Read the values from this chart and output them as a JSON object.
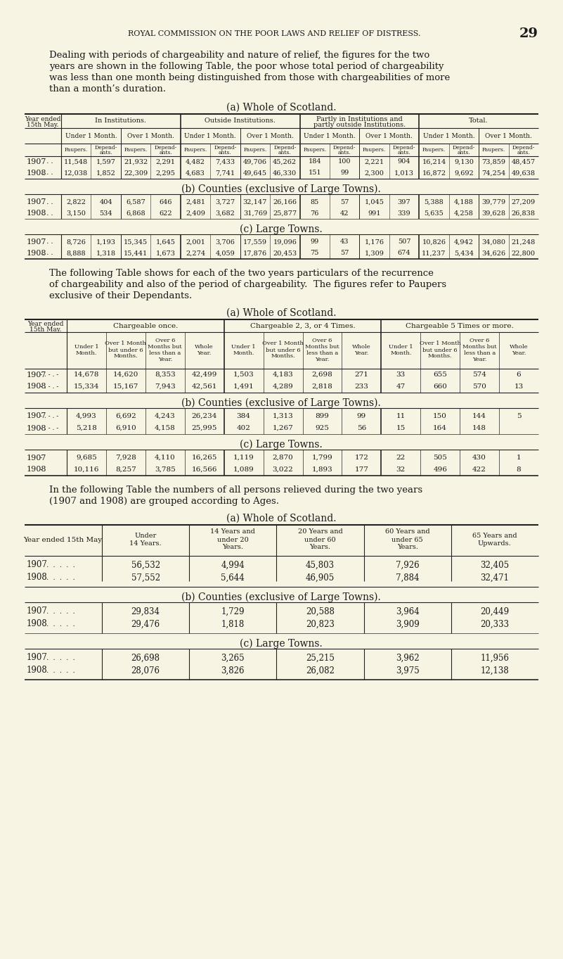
{
  "bg_color": "#f7f4e4",
  "text_color": "#1a1a1a",
  "page_header": "ROYAL COMMISSION ON THE POOR LAWS AND RELIEF OF DISTRESS.",
  "page_number": "29",
  "intro_text": "Dealing with periods of chargeability and nature of relief, the figures for the two\nyears are shown in the following Table, the poor whose total period of chargeability\nwas less than one month being distinguished from those with chargeabilities of more\nthan a month’s duration.",
  "table1_title": "(a) Whole of Scotland.",
  "table1_col_groups": [
    "In Institutions.",
    "Outside Institutions.",
    "Partly in Institutions and\npartly outside Institutions.",
    "Total."
  ],
  "table1_sub_cols": [
    "Under 1 Month.",
    "Over 1 Month.",
    "Under 1 Month.",
    "Over 1 Month.",
    "Under 1 Month.",
    "Over 1 Month.",
    "Under 1 Month.",
    "Over 1 Month."
  ],
  "table1_leaf_cols": [
    "Paupers.",
    "Depend-\nants.",
    "Paupers.",
    "Depend-\nants.",
    "Paupers.",
    "Depend-\nants.",
    "Paupers.",
    "Depend-\nants.",
    "Paupers.",
    "Depend-\nants.",
    "Paupers.",
    "Depend-\nants.",
    "Paupers.",
    "Depend-\nants.",
    "Paupers.",
    "Depend-\nants."
  ],
  "table1_data": [
    [
      "1907",
      "11,548",
      "1,597",
      "21,932",
      "2,291",
      "4,482",
      "7,433",
      "49,706",
      "45,262",
      "184",
      "100",
      "2,221",
      "904",
      "16,214",
      "9,130",
      "73,859",
      "48,457"
    ],
    [
      "1908",
      "12,038",
      "1,852",
      "22,309",
      "2,295",
      "4,683",
      "7,741",
      "49,645",
      "46,330",
      "151",
      "99",
      "2,300",
      "1,013",
      "16,872",
      "9,692",
      "74,254",
      "49,638"
    ]
  ],
  "table1b_title": "(b) Counties (exclusive of Large Towns).",
  "table1b_data": [
    [
      "1907",
      "2,822",
      "404",
      "6,587",
      "646",
      "2,481",
      "3,727",
      "32,147",
      "26,166",
      "85",
      "57",
      "1,045",
      "397",
      "5,388",
      "4,188",
      "39,779",
      "27,209"
    ],
    [
      "1908",
      "3,150",
      "534",
      "6,868",
      "622",
      "2,409",
      "3,682",
      "31,769",
      "25,877",
      "76",
      "42",
      "991",
      "339",
      "5,635",
      "4,258",
      "39,628",
      "26,838"
    ]
  ],
  "table1c_title": "(c) Large Towns.",
  "table1c_data": [
    [
      "1907",
      "8,726",
      "1,193",
      "15,345",
      "1,645",
      "2,001",
      "3,706",
      "17,559",
      "19,096",
      "99",
      "43",
      "1,176",
      "507",
      "10,826",
      "4,942",
      "34,080",
      "21,248"
    ],
    [
      "1908",
      "8,888",
      "1,318",
      "15,441",
      "1,673",
      "2,274",
      "4,059",
      "17,876",
      "20,453",
      "75",
      "57",
      "1,309",
      "674",
      "11,237",
      "5,434",
      "34,626",
      "22,800"
    ]
  ],
  "mid_text": "The following Table shows for each of the two years particulars of the recurrence\nof chargeability and also of the period of chargeability.  The figures refer to Paupers\nexclusive of their Dependants.",
  "table2_title": "(a) Whole of Scotland.",
  "table2_col_groups": [
    "Chargeable once.",
    "Chargeable 2, 3, or 4 Times.",
    "Chargeable 5 Times or more."
  ],
  "table2_sub_cols_labels": [
    "Under 1\nMonth.",
    "Over 1 Month\nbut under 6\nMonths.",
    "Over 6\nMonths but\nless than a\nYear.",
    "Whole\nYear.",
    "Under 1\nMonth.",
    "Over 1 Month\nbut under 6\nMonths.",
    "Over 6\nMonths but\nless than a\nYear.",
    "Whole\nYear.",
    "Under 1\nMonth.",
    "Over 1 Month\nbut under 6\nMonths.",
    "Over 6\nMonths but\nless than a\nYear.",
    "Whole\nYear."
  ],
  "table2_data": [
    [
      "1907",
      "14,678",
      "14,620",
      "8,353",
      "42,499",
      "1,503",
      "4,183",
      "2,698",
      "271",
      "33",
      "655",
      "574",
      "6"
    ],
    [
      "1908",
      "15,334",
      "15,167",
      "7,943",
      "42,561",
      "1,491",
      "4,289",
      "2,818",
      "233",
      "47",
      "660",
      "570",
      "13"
    ]
  ],
  "table2b_title": "(b) Counties (exclusive of Large Towns).",
  "table2b_data": [
    [
      "1907",
      "4,993",
      "6,692",
      "4,243",
      "26,234",
      "384",
      "1,313",
      "899",
      "99",
      "11",
      "150",
      "144",
      "5"
    ],
    [
      "1908",
      "5,218",
      "6,910",
      "4,158",
      "25,995",
      "402",
      "1,267",
      "925",
      "56",
      "15",
      "164",
      "148",
      ""
    ]
  ],
  "table2c_title": "(c) Large Towns.",
  "table2c_data": [
    [
      "1907",
      "9,685",
      "7,928",
      "4,110",
      "16,265",
      "1,119",
      "2,870",
      "1,799",
      "172",
      "22",
      "505",
      "430",
      "1"
    ],
    [
      "1908",
      "10,116",
      "8,257",
      "3,785",
      "16,566",
      "1,089",
      "3,022",
      "1,893",
      "177",
      "32",
      "496",
      "422",
      "8"
    ]
  ],
  "table3_intro": "In the following Table the numbers of all persons relieved during the two years\n(1907 and 1908) are grouped according to Ages.",
  "table3_title": "(a) Whole of Scotland.",
  "table3_col_labels": [
    "Year ended 15th May.",
    "Under\n14 Years.",
    "14 Years and\nunder 20\nYears.",
    "20 Years and\nunder 60\nYears.",
    "60 Years and\nunder 65\nYears.",
    "65 Years and\nUpwards."
  ],
  "table3_data": [
    [
      "1907",
      "56,532",
      "4,994",
      "45,803",
      "7,926",
      "32,405"
    ],
    [
      "1908",
      "57,552",
      "5,644",
      "46,905",
      "7,884",
      "32,471"
    ]
  ],
  "table3b_title": "(b) Counties (exclusive of Large Towns).",
  "table3b_data": [
    [
      "1907",
      "29,834",
      "1,729",
      "20,588",
      "3,964",
      "20,449"
    ],
    [
      "1908",
      "29,476",
      "1,818",
      "20,823",
      "3,909",
      "20,333"
    ]
  ],
  "table3c_title": "(c) Large Towns.",
  "table3c_data": [
    [
      "1907",
      "26,698",
      "3,265",
      "25,215",
      "3,962",
      "11,956"
    ],
    [
      "1908",
      "28,076",
      "3,826",
      "26,082",
      "3,975",
      "12,138"
    ]
  ]
}
